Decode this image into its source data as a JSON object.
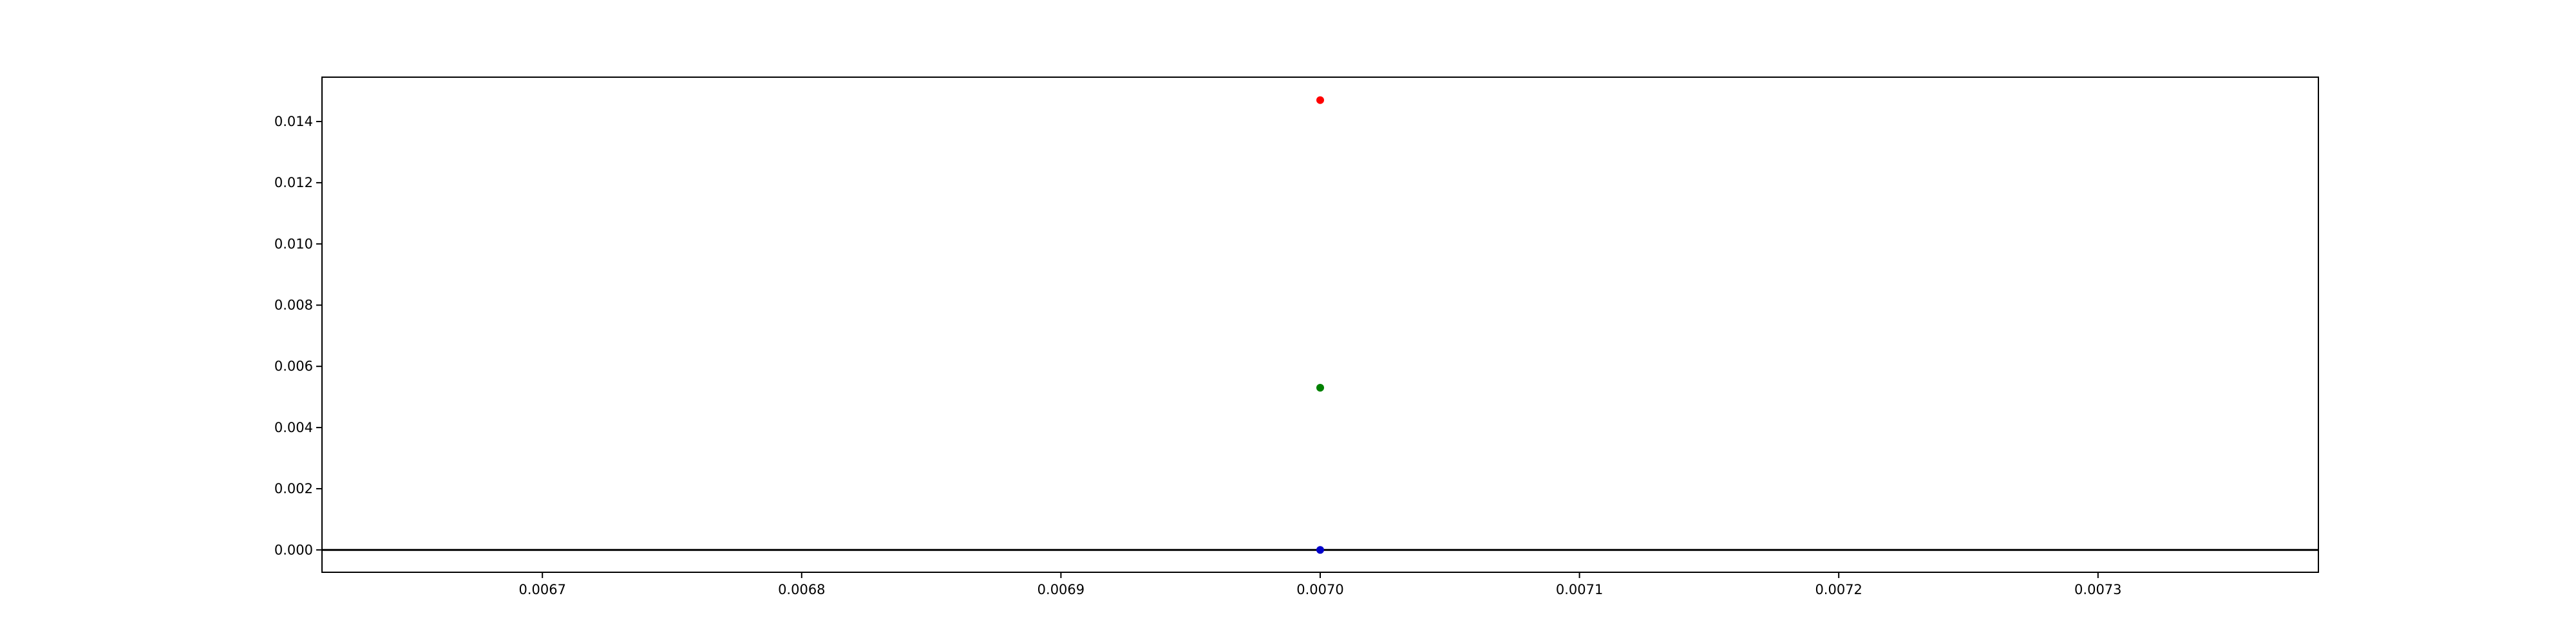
{
  "chart_data": {
    "type": "scatter",
    "title": "",
    "xlabel": "",
    "ylabel": "",
    "xlim": [
      0.006615,
      0.007385
    ],
    "ylim": [
      -0.00073,
      0.01545
    ],
    "x_ticks": [
      "0.0067",
      "0.0068",
      "0.0069",
      "0.0070",
      "0.0071",
      "0.0072",
      "0.0073"
    ],
    "y_ticks": [
      "0.000",
      "0.002",
      "0.004",
      "0.006",
      "0.008",
      "0.010",
      "0.012",
      "0.014"
    ],
    "grid": false,
    "legend": "none",
    "horizontal_line": {
      "y": 0,
      "color": "#000000"
    },
    "series": [
      {
        "color": "#ff0000",
        "points": [
          {
            "x": 0.007,
            "y": 0.0147
          }
        ]
      },
      {
        "color": "#008000",
        "points": [
          {
            "x": 0.007,
            "y": 0.0053
          }
        ]
      },
      {
        "color": "#0000cc",
        "points": [
          {
            "x": 0.007,
            "y": 0.0
          }
        ]
      }
    ]
  }
}
